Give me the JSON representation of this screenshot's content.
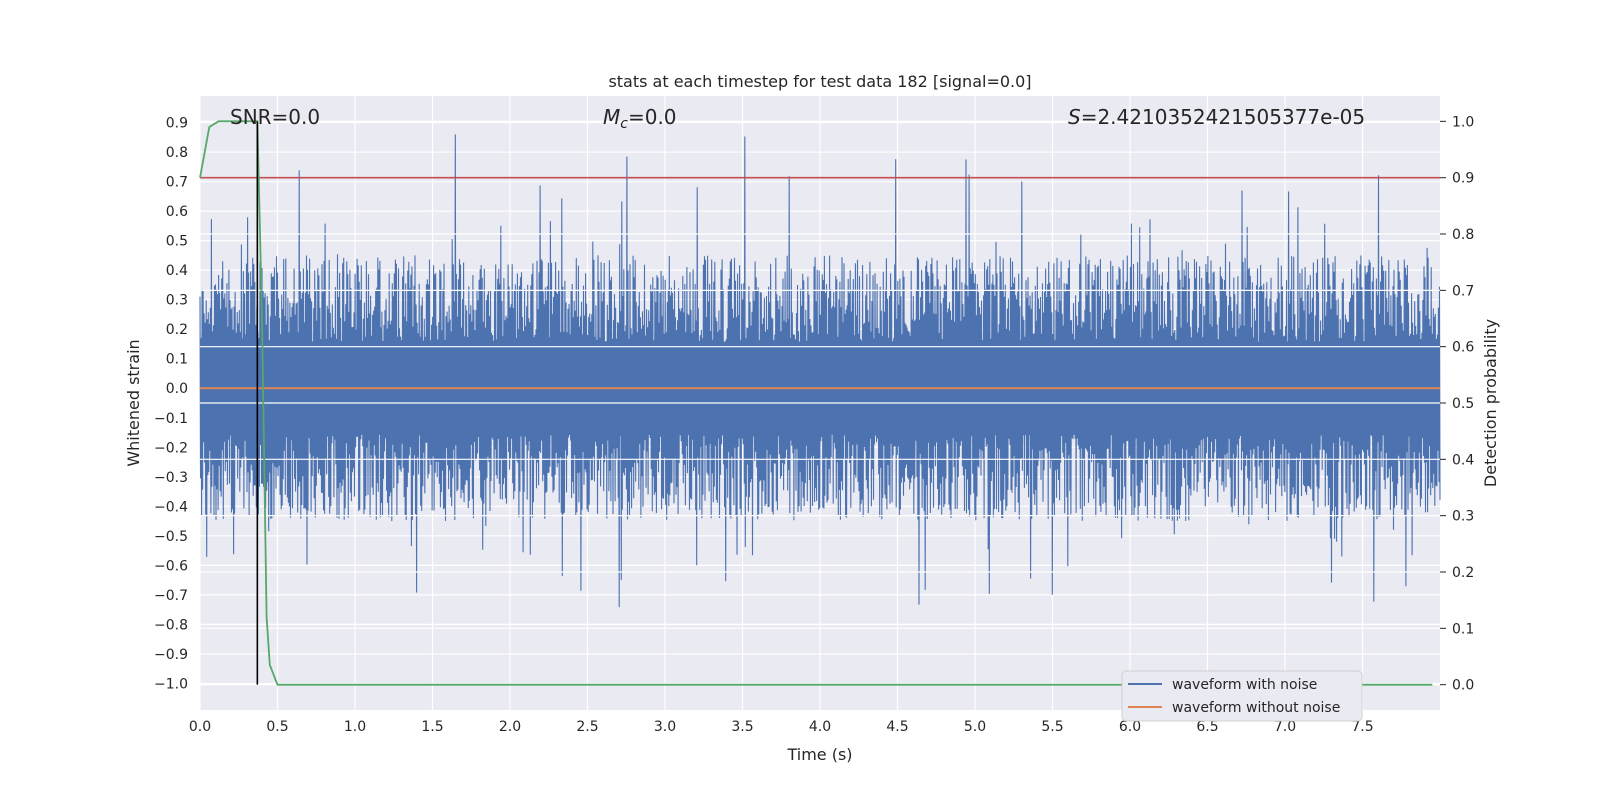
{
  "chart_data": {
    "type": "line",
    "title": "stats at each timestep for test data 182 [signal=0.0]",
    "xlabel": "Time (s)",
    "ylabel": "Whitened strain",
    "ylabel_right": "Detection probability",
    "xlim": [
      0.0,
      8.0
    ],
    "ylim": [
      -1.09,
      0.99
    ],
    "ylim_right": [
      -0.045,
      1.045
    ],
    "x_ticks": [
      0.0,
      0.5,
      1.0,
      1.5,
      2.0,
      2.5,
      3.0,
      3.5,
      4.0,
      4.5,
      5.0,
      5.5,
      6.0,
      6.5,
      7.0,
      7.5
    ],
    "x_tick_labels": [
      "0.0",
      "0.5",
      "1.0",
      "1.5",
      "2.0",
      "2.5",
      "3.0",
      "3.5",
      "4.0",
      "4.5",
      "5.0",
      "5.5",
      "6.0",
      "6.5",
      "7.0",
      "7.5"
    ],
    "y_ticks": [
      0.9,
      0.8,
      0.7,
      0.6,
      0.5,
      0.4,
      0.3,
      0.2,
      0.1,
      0.0,
      -0.1,
      -0.2,
      -0.3,
      -0.4,
      -0.5,
      -0.6,
      -0.7,
      -0.8,
      -0.9,
      -1.0
    ],
    "y_tick_labels": [
      "0.9",
      "0.8",
      "0.7",
      "0.6",
      "0.5",
      "0.4",
      "0.3",
      "0.2",
      "0.1",
      "0.0",
      "−0.1",
      "−0.2",
      "−0.3",
      "−0.4",
      "−0.5",
      "−0.6",
      "−0.7",
      "−0.8",
      "−0.9",
      "−1.0"
    ],
    "y_right_ticks": [
      1.0,
      0.9,
      0.8,
      0.7,
      0.6,
      0.5,
      0.4,
      0.3,
      0.2,
      0.1,
      0.0
    ],
    "y_right_tick_labels": [
      "1.0",
      "0.9",
      "0.8",
      "0.7",
      "0.6",
      "0.5",
      "0.4",
      "0.3",
      "0.2",
      "0.1",
      "0.0"
    ],
    "annotations": {
      "snr": "SNR=0.0",
      "mc_symbol": "M",
      "mc_sub": "c",
      "mc_value": "=0.0",
      "s_symbol": "S",
      "s_value": "=2.4210352421505377e-05"
    },
    "series": [
      {
        "name": "waveform with noise",
        "color": "#4c72b0",
        "axis": "left",
        "description": "dense whitened noise, amplitude mostly within ±0.45, spikes to about ±0.9",
        "envelope_typical": 0.45,
        "envelope_peak": 0.9,
        "x_range": [
          0.0,
          8.0
        ]
      },
      {
        "name": "waveform without noise",
        "color": "#dd8452",
        "axis": "left",
        "x": [
          0.0,
          8.0
        ],
        "y": [
          0.0,
          0.0
        ]
      },
      {
        "name": "detection probability",
        "color": "#55a868",
        "axis": "right",
        "x": [
          0.0,
          0.06,
          0.12,
          0.2,
          0.3,
          0.37,
          0.4,
          0.43,
          0.45,
          0.5,
          7.95
        ],
        "y": [
          0.9,
          0.99,
          1.0,
          1.0,
          1.0,
          1.0,
          0.65,
          0.12,
          0.035,
          0.0,
          0.0
        ]
      },
      {
        "name": "threshold",
        "color": "#c44e52",
        "axis": "right",
        "x": [
          0.0,
          8.0
        ],
        "y": [
          0.9,
          0.9
        ]
      },
      {
        "name": "detection time marker",
        "color": "#000000",
        "axis": "right",
        "x": [
          0.37,
          0.37
        ],
        "y": [
          0.0,
          1.0
        ]
      }
    ],
    "legend": {
      "location": "lower right",
      "entries": [
        {
          "label": "waveform with noise",
          "color": "#4c72b0"
        },
        {
          "label": "waveform without noise",
          "color": "#dd8452"
        }
      ]
    },
    "style": {
      "background": "#eaeaf2",
      "grid": true,
      "grid_color": "#ffffff"
    }
  }
}
